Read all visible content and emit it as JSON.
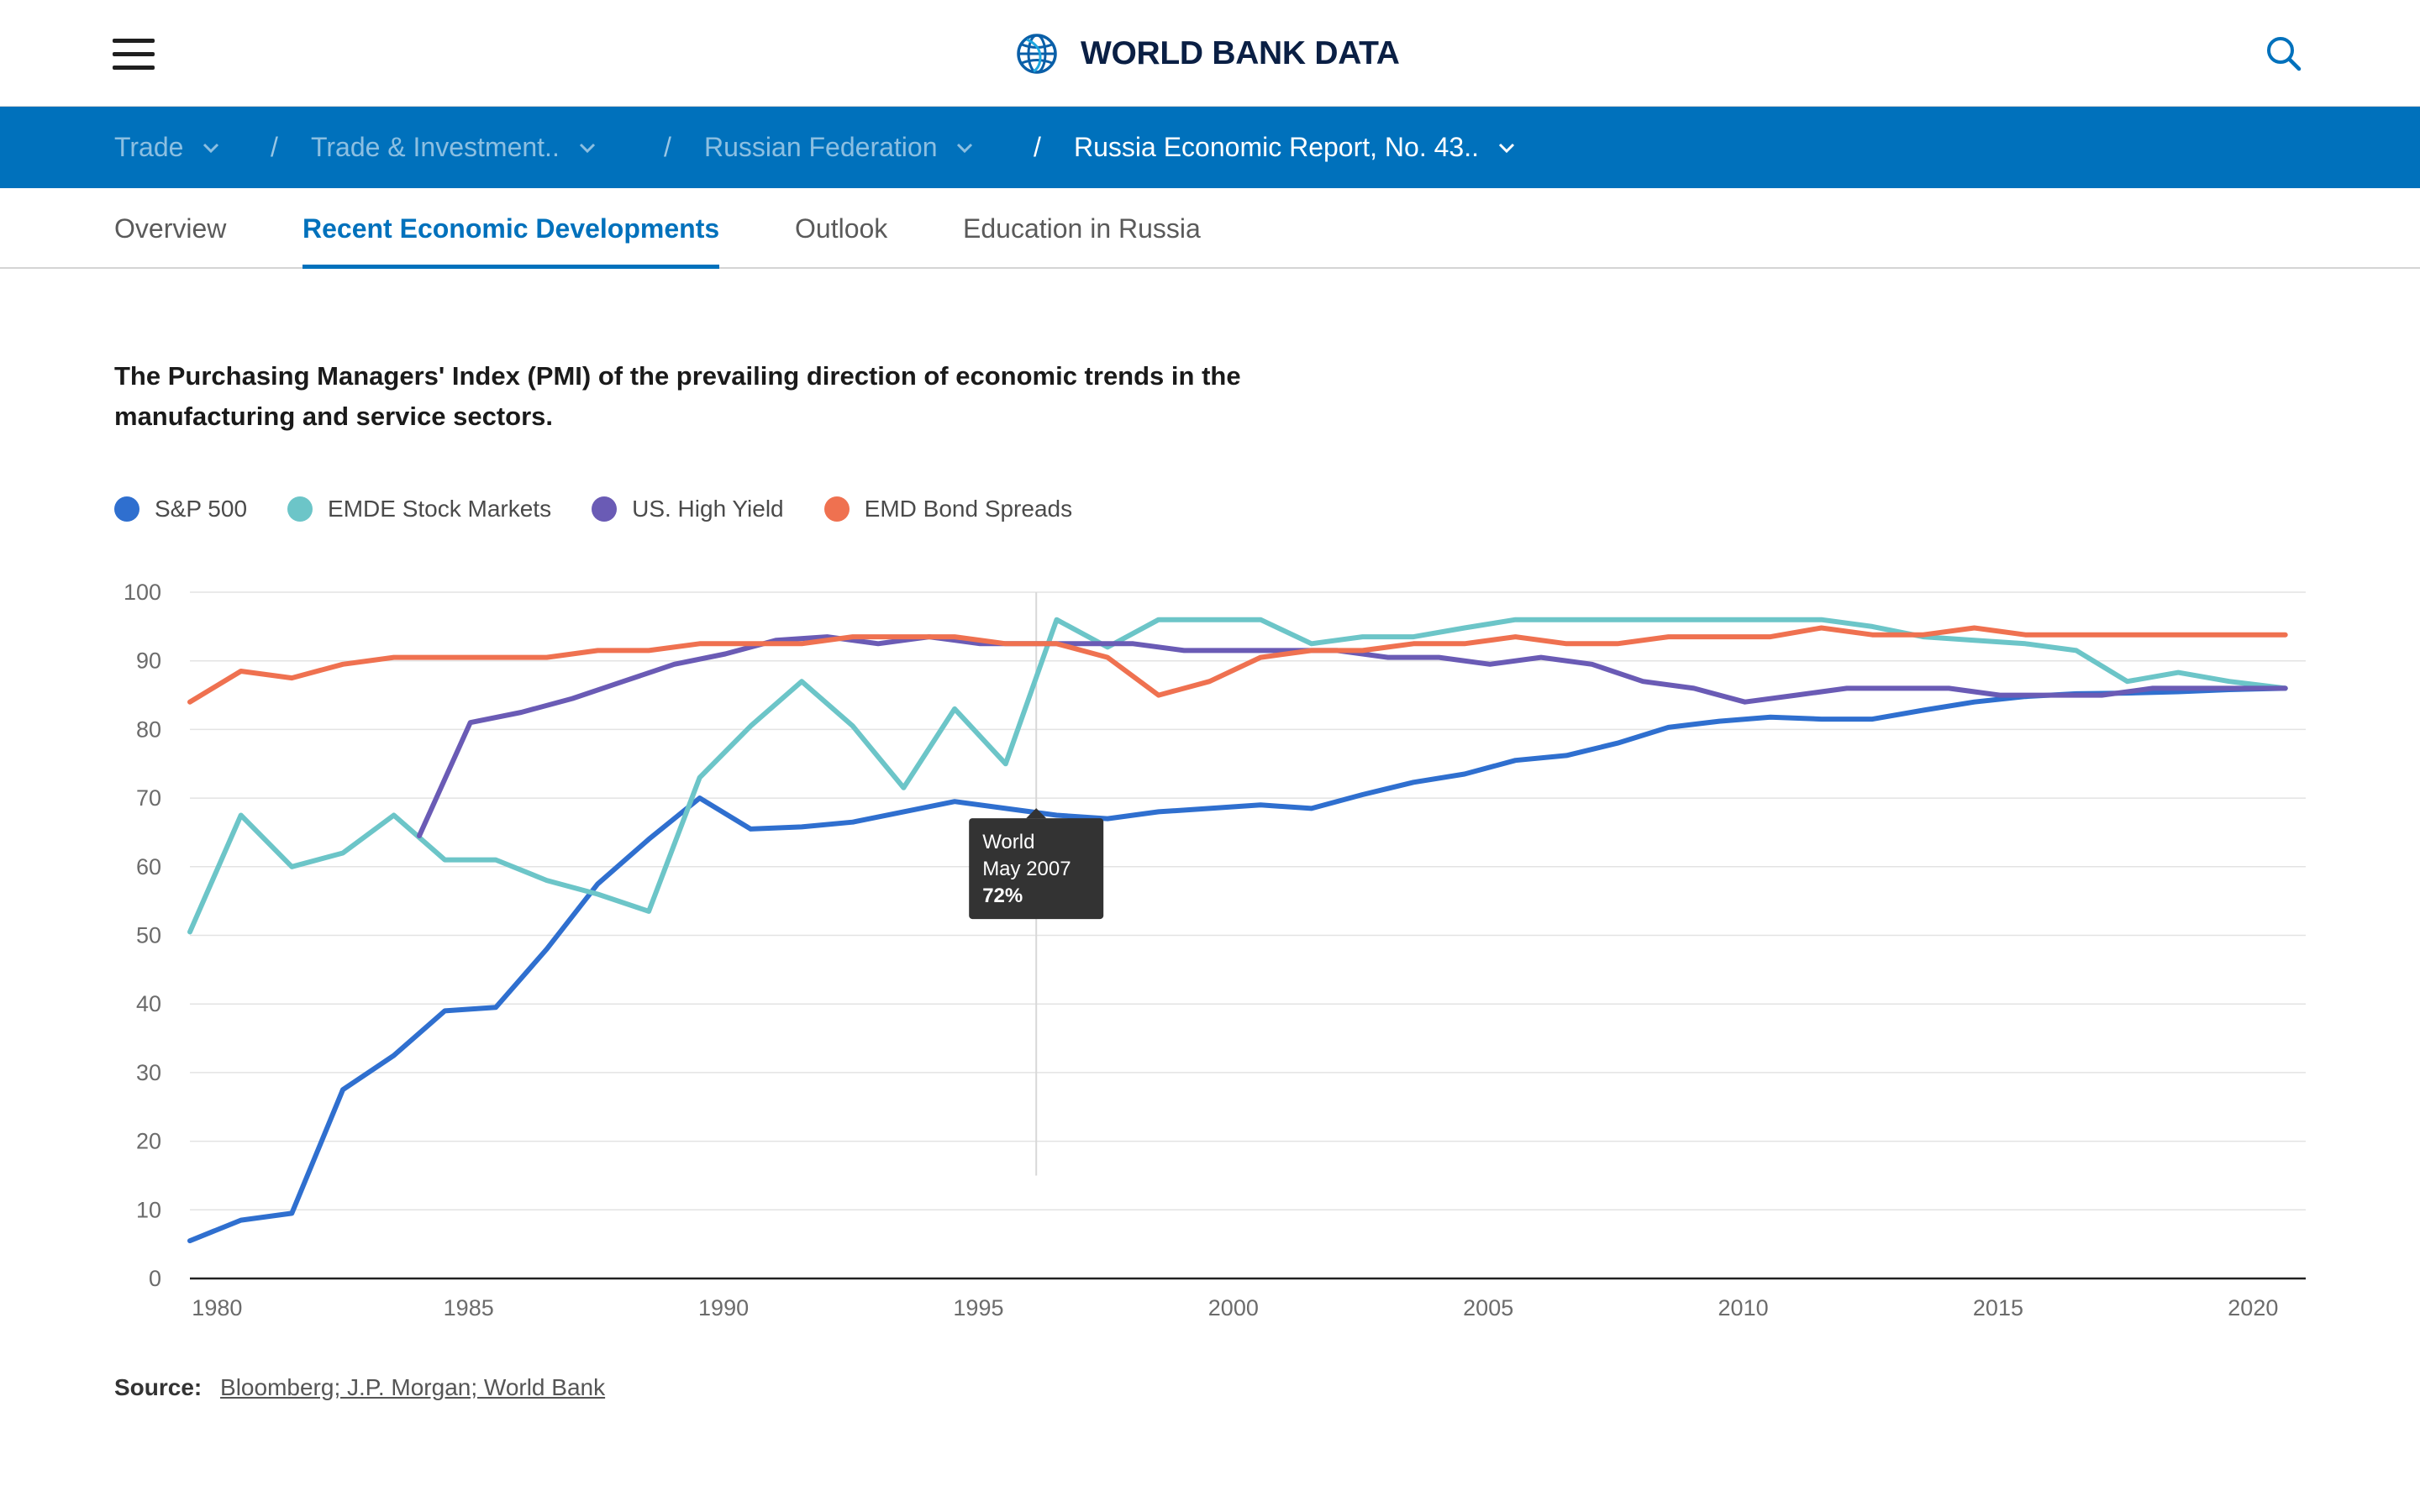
{
  "header": {
    "brand": "WORLD BANK DATA"
  },
  "breadcrumbs": [
    {
      "label": "Trade"
    },
    {
      "label": "Trade & Investment.."
    },
    {
      "label": "Russian Federation"
    },
    {
      "label": "Russia Economic Report, No. 43.."
    }
  ],
  "breadcrumb_separator": "/",
  "tabs": [
    {
      "label": "Overview"
    },
    {
      "label": "Recent Economic Developments"
    },
    {
      "label": "Outlook"
    },
    {
      "label": "Education in Russia"
    }
  ],
  "colors": {
    "brand_blue": "#0071bc",
    "sp500": "#2f6fcf",
    "emde": "#6cc5c8",
    "us_high_yield": "#6a5bb5",
    "emd_bond": "#ef7150"
  },
  "chart_data": {
    "type": "line",
    "title": "The Purchasing Managers' Index (PMI) of the prevailing direction of economic trends in the manufacturing and service sectors.",
    "xlabel": "",
    "ylabel": "",
    "xlim": [
      1979.5,
      2021
    ],
    "ylim": [
      0,
      100
    ],
    "yticks": [
      0,
      10,
      20,
      30,
      40,
      50,
      60,
      70,
      80,
      90,
      100
    ],
    "xticks": [
      1980,
      1985,
      1990,
      1995,
      2000,
      2005,
      2010,
      2015,
      2020
    ],
    "grid": true,
    "legend_position": "top-left",
    "series": [
      {
        "name": "S&P 500",
        "color": "#2f6fcf",
        "points": [
          [
            1979.5,
            5.5
          ],
          [
            1980.5,
            8.5
          ],
          [
            1981.5,
            9.5
          ],
          [
            1982.5,
            27.5
          ],
          [
            1983.5,
            32.5
          ],
          [
            1984.5,
            39
          ],
          [
            1985.5,
            39.5
          ],
          [
            1986.5,
            48
          ],
          [
            1987.5,
            57.5
          ],
          [
            1988.5,
            64
          ],
          [
            1989.5,
            70
          ],
          [
            1990.5,
            65.5
          ],
          [
            1991.5,
            65.8
          ],
          [
            1992.5,
            66.5
          ],
          [
            1993.5,
            68
          ],
          [
            1994.5,
            69.5
          ],
          [
            1995.5,
            68.5
          ],
          [
            1996.5,
            67.5
          ],
          [
            1997.5,
            67
          ],
          [
            1998.5,
            68
          ],
          [
            1999.5,
            68.5
          ],
          [
            2000.5,
            69
          ],
          [
            2001.5,
            68.5
          ],
          [
            2002.5,
            70.5
          ],
          [
            2003.5,
            72.3
          ],
          [
            2004.5,
            73.5
          ],
          [
            2005.5,
            75.5
          ],
          [
            2006.5,
            76.2
          ],
          [
            2007.5,
            78
          ],
          [
            2008.5,
            80.3
          ],
          [
            2009.5,
            81.2
          ],
          [
            2010.5,
            81.8
          ],
          [
            2011.5,
            81.5
          ],
          [
            2012.5,
            81.5
          ],
          [
            2013.5,
            82.8
          ],
          [
            2014.5,
            84
          ],
          [
            2015.5,
            84.8
          ],
          [
            2016.5,
            85.2
          ],
          [
            2017.5,
            85.3
          ],
          [
            2018.5,
            85.5
          ],
          [
            2019.5,
            85.8
          ],
          [
            2020.6,
            86
          ]
        ]
      },
      {
        "name": "EMDE Stock Markets",
        "color": "#6cc5c8",
        "points": [
          [
            1979.5,
            50.5
          ],
          [
            1980.5,
            67.5
          ],
          [
            1981.5,
            60
          ],
          [
            1982.5,
            62
          ],
          [
            1983.5,
            67.5
          ],
          [
            1984.5,
            61
          ],
          [
            1985.5,
            61
          ],
          [
            1986.5,
            58
          ],
          [
            1987.5,
            56
          ],
          [
            1988.5,
            53.5
          ],
          [
            1989.5,
            73
          ],
          [
            1990.5,
            80.5
          ],
          [
            1991.5,
            87
          ],
          [
            1992.5,
            80.5
          ],
          [
            1993.5,
            71.5
          ],
          [
            1994.5,
            83
          ],
          [
            1995.5,
            75
          ],
          [
            1996.5,
            96
          ],
          [
            1997.5,
            92
          ],
          [
            1998.5,
            96
          ],
          [
            1999.5,
            96
          ],
          [
            2000.5,
            96
          ],
          [
            2001.5,
            92.5
          ],
          [
            2002.5,
            93.5
          ],
          [
            2003.5,
            93.5
          ],
          [
            2004.5,
            94.8
          ],
          [
            2005.5,
            96
          ],
          [
            2006.5,
            96
          ],
          [
            2007.5,
            96
          ],
          [
            2008.5,
            96
          ],
          [
            2009.5,
            96
          ],
          [
            2010.5,
            96
          ],
          [
            2011.5,
            96
          ],
          [
            2012.5,
            95
          ],
          [
            2013.5,
            93.5
          ],
          [
            2014.5,
            93
          ],
          [
            2015.5,
            92.5
          ],
          [
            2016.5,
            91.5
          ],
          [
            2017.5,
            87
          ],
          [
            2018.5,
            88.3
          ],
          [
            2019.5,
            87
          ],
          [
            2020.6,
            86
          ]
        ]
      },
      {
        "name": "US. High Yield",
        "color": "#6a5bb5",
        "points": [
          [
            1984,
            64.5
          ],
          [
            1985,
            81
          ],
          [
            1986,
            82.5
          ],
          [
            1987,
            84.5
          ],
          [
            1988,
            87
          ],
          [
            1989,
            89.5
          ],
          [
            1990,
            91
          ],
          [
            1991,
            93
          ],
          [
            1992,
            93.5
          ],
          [
            1993,
            92.5
          ],
          [
            1994,
            93.5
          ],
          [
            1995,
            92.5
          ],
          [
            1996,
            92.5
          ],
          [
            1997,
            92.5
          ],
          [
            1998,
            92.5
          ],
          [
            1999,
            91.5
          ],
          [
            2000,
            91.5
          ],
          [
            2001,
            91.5
          ],
          [
            2002,
            91.5
          ],
          [
            2003,
            90.5
          ],
          [
            2004,
            90.5
          ],
          [
            2005,
            89.5
          ],
          [
            2006,
            90.5
          ],
          [
            2007,
            89.5
          ],
          [
            2008,
            87
          ],
          [
            2009,
            86
          ],
          [
            2010,
            84
          ],
          [
            2011,
            85
          ],
          [
            2012,
            86
          ],
          [
            2013,
            86
          ],
          [
            2014,
            86
          ],
          [
            2015,
            85
          ],
          [
            2016,
            85
          ],
          [
            2017,
            85
          ],
          [
            2018,
            86
          ],
          [
            2019,
            86
          ],
          [
            2020.6,
            86
          ]
        ]
      },
      {
        "name": "EMD Bond Spreads",
        "color": "#ef7150",
        "points": [
          [
            1979.5,
            84
          ],
          [
            1980.5,
            88.5
          ],
          [
            1981.5,
            87.5
          ],
          [
            1982.5,
            89.5
          ],
          [
            1983.5,
            90.5
          ],
          [
            1984.5,
            90.5
          ],
          [
            1985.5,
            90.5
          ],
          [
            1986.5,
            90.5
          ],
          [
            1987.5,
            91.5
          ],
          [
            1988.5,
            91.5
          ],
          [
            1989.5,
            92.5
          ],
          [
            1990.5,
            92.5
          ],
          [
            1991.5,
            92.5
          ],
          [
            1992.5,
            93.5
          ],
          [
            1993.5,
            93.5
          ],
          [
            1994.5,
            93.5
          ],
          [
            1995.5,
            92.5
          ],
          [
            1996.5,
            92.5
          ],
          [
            1997.5,
            90.5
          ],
          [
            1998.5,
            85
          ],
          [
            1999.5,
            87
          ],
          [
            2000.5,
            90.5
          ],
          [
            2001.5,
            91.5
          ],
          [
            2002.5,
            91.5
          ],
          [
            2003.5,
            92.5
          ],
          [
            2004.5,
            92.5
          ],
          [
            2005.5,
            93.5
          ],
          [
            2006.5,
            92.5
          ],
          [
            2007.5,
            92.5
          ],
          [
            2008.5,
            93.5
          ],
          [
            2009.5,
            93.5
          ],
          [
            2010.5,
            93.5
          ],
          [
            2011.5,
            94.8
          ],
          [
            2012.5,
            93.8
          ],
          [
            2013.5,
            93.8
          ],
          [
            2014.5,
            94.8
          ],
          [
            2015.5,
            93.8
          ],
          [
            2016.5,
            93.8
          ],
          [
            2017.5,
            93.8
          ],
          [
            2018.5,
            93.8
          ],
          [
            2019.5,
            93.8
          ],
          [
            2020.6,
            93.8
          ]
        ]
      }
    ],
    "hover_x": 1996.1,
    "tooltip": {
      "x": 1996.1,
      "y": 70,
      "series": "World",
      "date": "May 2007",
      "value": "72%"
    }
  },
  "source": {
    "label": "Source:",
    "text": "Bloomberg; J.P. Morgan; World Bank"
  }
}
